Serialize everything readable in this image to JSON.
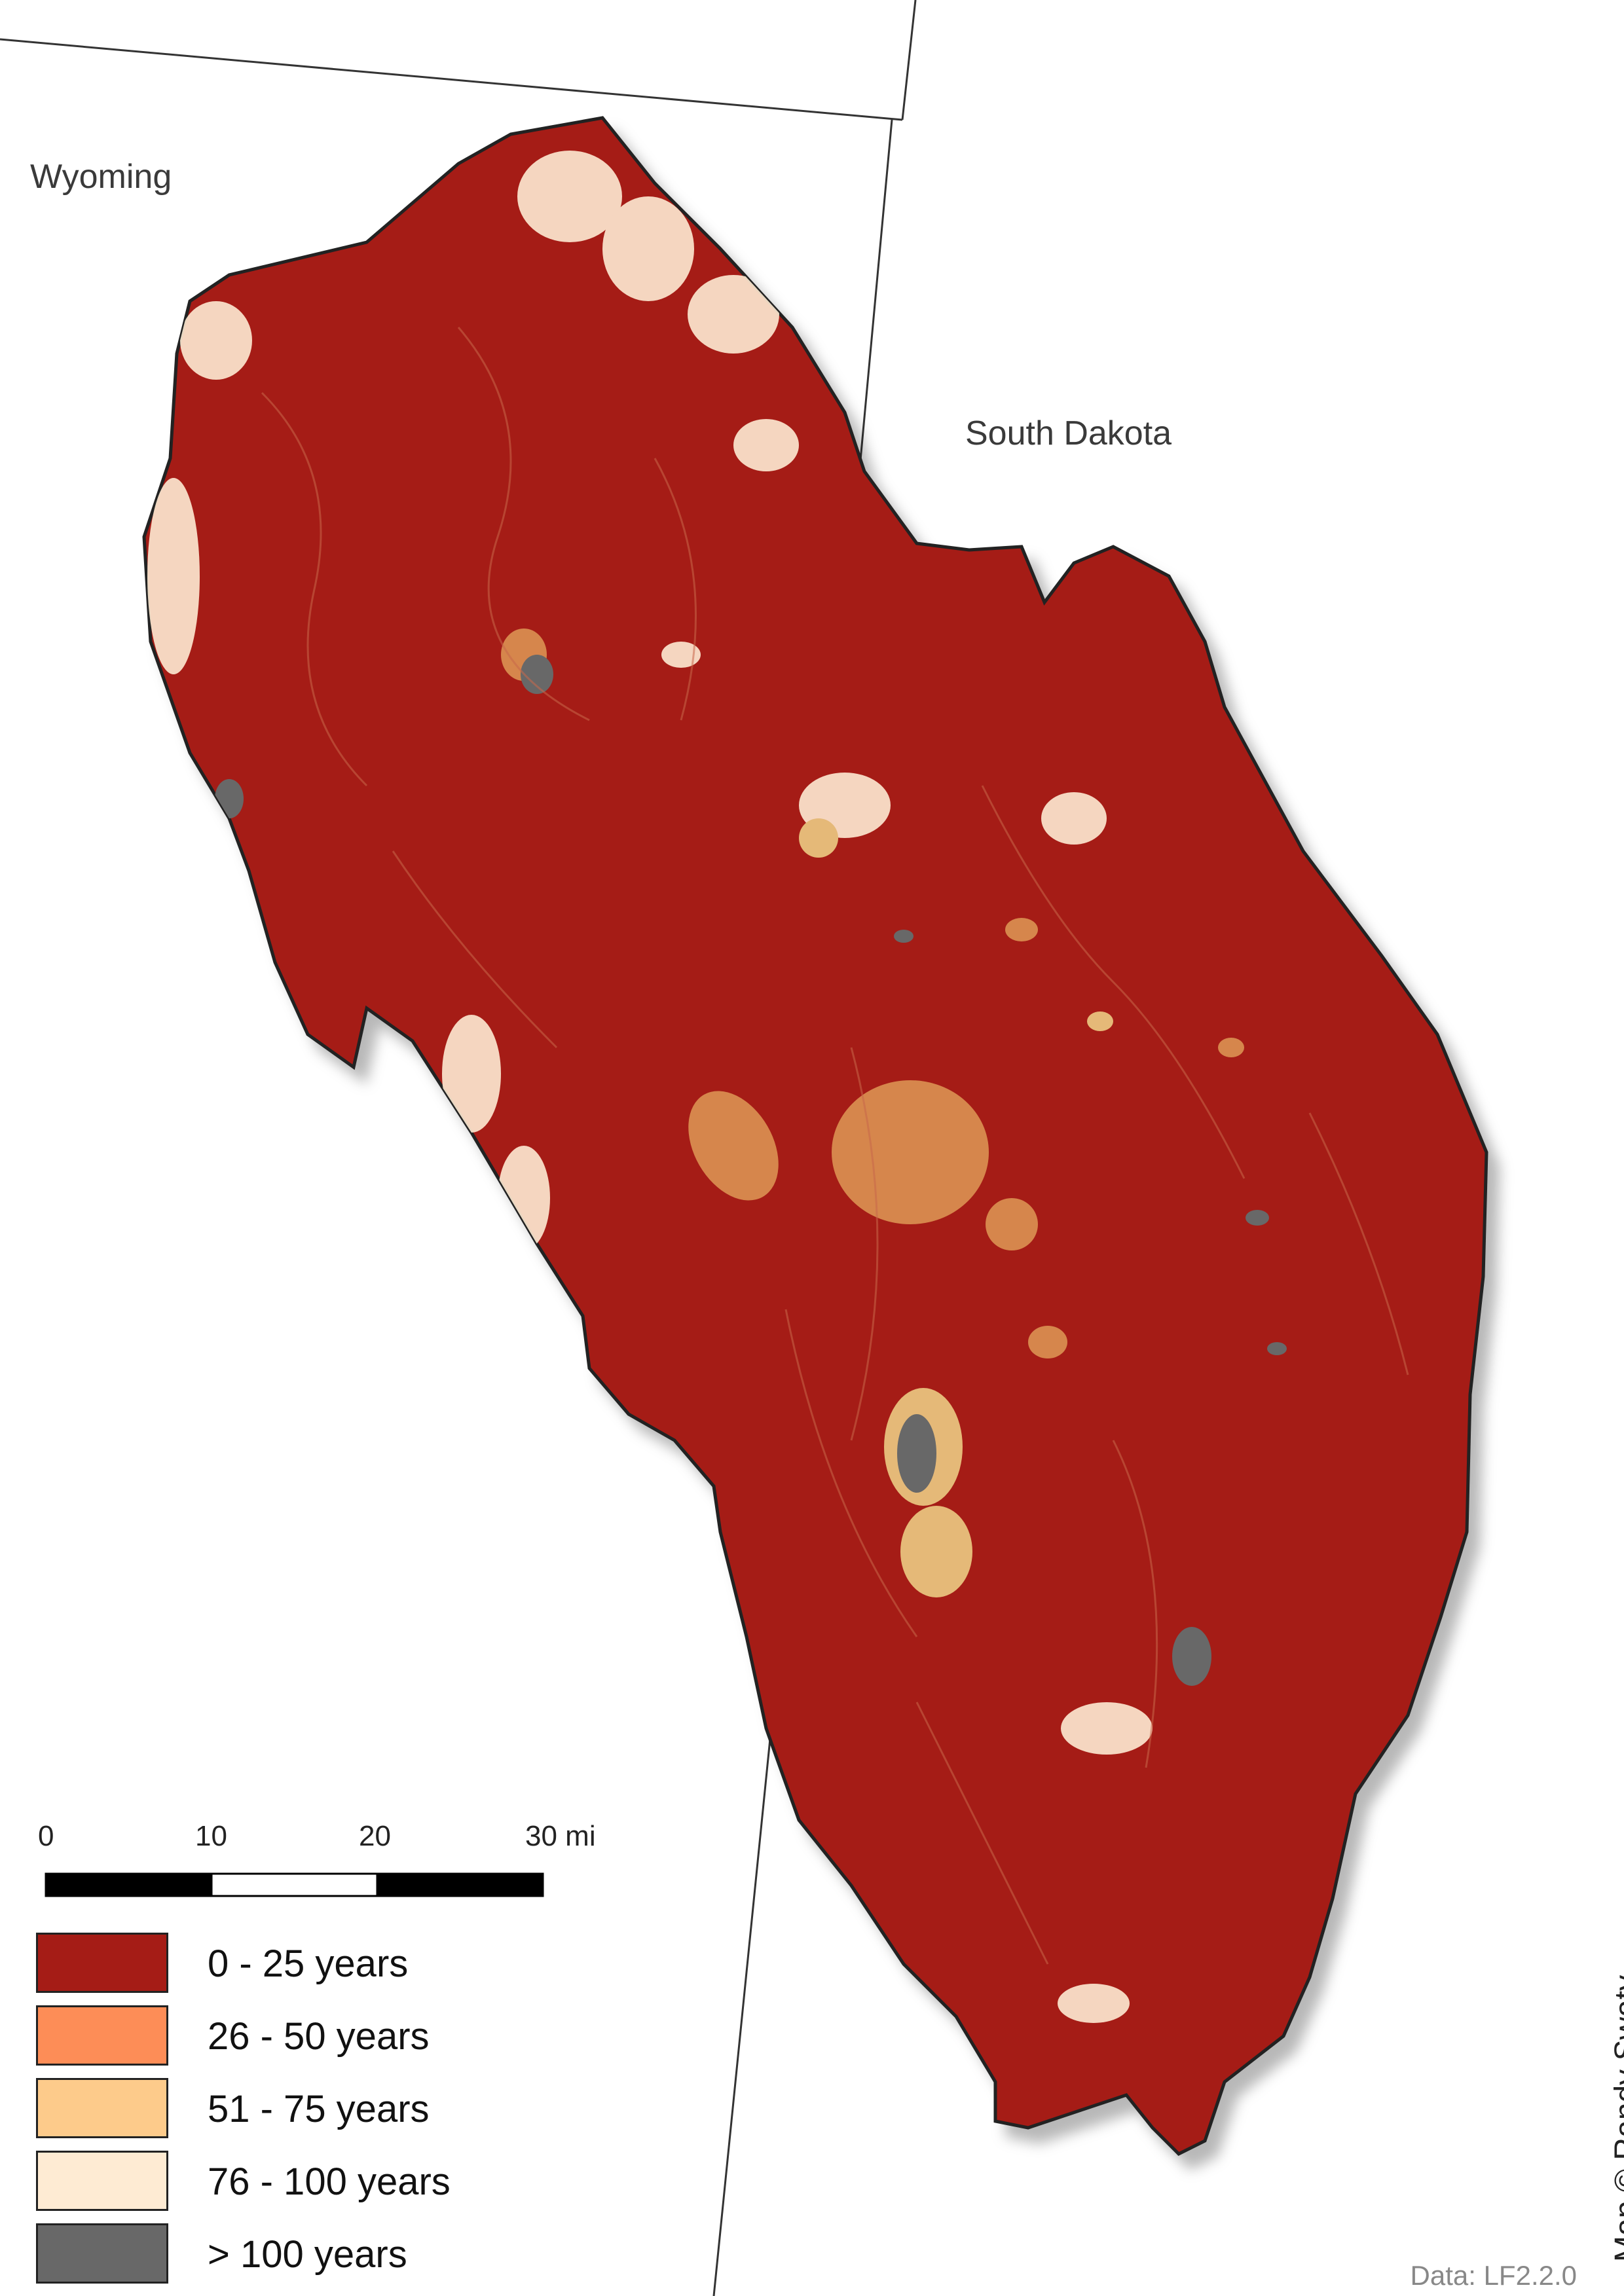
{
  "map": {
    "state_labels": {
      "wyoming": "Wyoming",
      "south_dakota": "South Dakota"
    },
    "scale_bar": {
      "ticks": [
        "0",
        "10",
        "20",
        "30 mi"
      ]
    },
    "legend": [
      {
        "label": "0 - 25 years",
        "color": "#A51C16"
      },
      {
        "label": "26 - 50 years",
        "color": "#FD8D57"
      },
      {
        "label": "51 - 75 years",
        "color": "#FDCB8B"
      },
      {
        "label": "76 - 100 years",
        "color": "#FEEBD3"
      },
      {
        "label": "> 100 years",
        "color": "#686868"
      }
    ],
    "credit": "Map © Randy Swaty",
    "data_source": "Data: LF2.2.0"
  }
}
